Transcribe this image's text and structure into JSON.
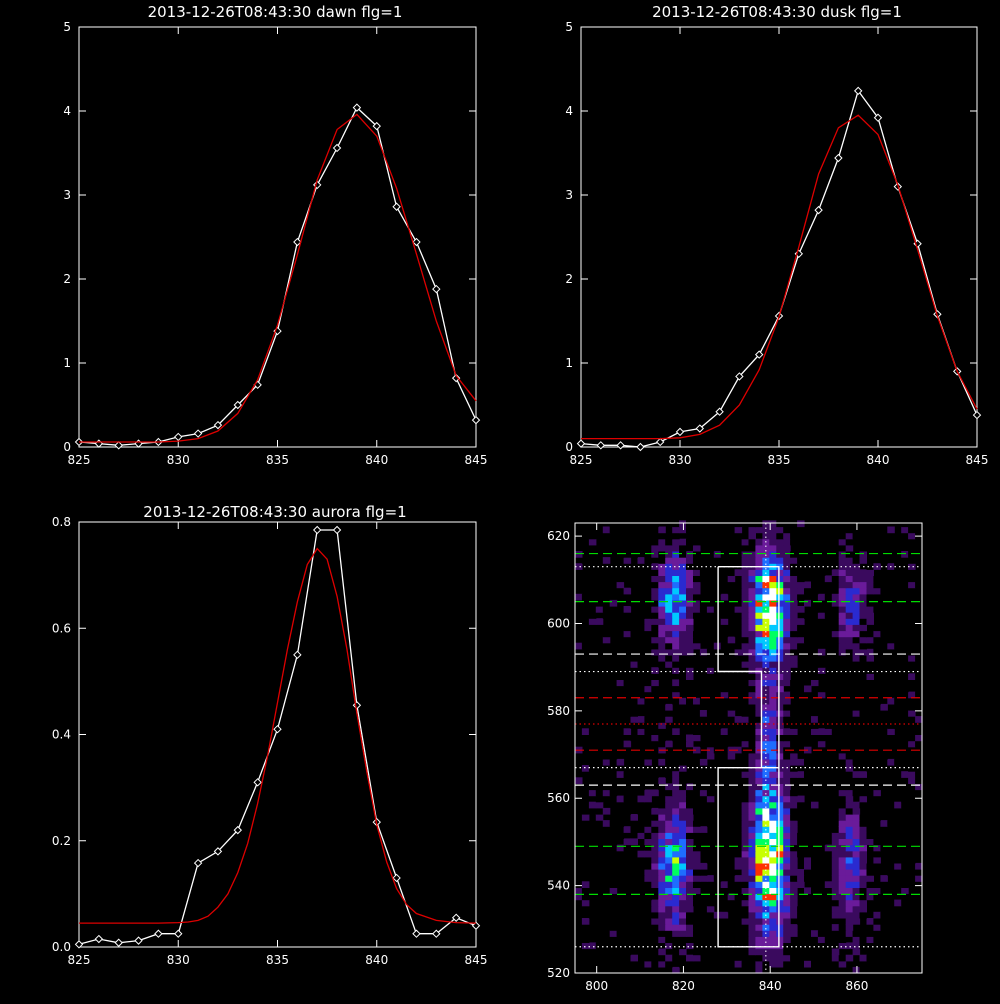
{
  "colors": {
    "background": "#000000",
    "axes": "#ffffff",
    "measured": "#ffffff",
    "fit": "#dd0000",
    "green_line": "#00dd00",
    "red_line": "#dd0000",
    "white_line": "#ffffff"
  },
  "chart_data": [
    {
      "type": "line",
      "title": "2013-12-26T08:43:30 dawn flg=1",
      "xlim": [
        825,
        845
      ],
      "ylim": [
        0,
        5
      ],
      "xticks": [
        "825",
        "830",
        "835",
        "840",
        "845"
      ],
      "yticks": [
        "0",
        "1",
        "2",
        "3",
        "4",
        "5"
      ],
      "series": [
        {
          "kind": "measured",
          "marker": "diamond",
          "x": [
            825,
            826,
            827,
            828,
            829,
            830,
            831,
            832,
            833,
            834,
            835,
            836,
            837,
            838,
            839,
            840,
            841,
            842,
            843,
            844,
            845
          ],
          "y": [
            0.06,
            0.04,
            0.02,
            0.04,
            0.06,
            0.12,
            0.16,
            0.26,
            0.5,
            0.74,
            1.38,
            2.44,
            3.12,
            3.56,
            4.04,
            3.82,
            2.86,
            2.44,
            1.88,
            0.82,
            0.32
          ]
        },
        {
          "kind": "fit",
          "x": [
            825,
            826,
            827,
            828,
            829,
            830,
            831,
            832,
            833,
            834,
            835,
            836,
            837,
            838,
            839,
            840,
            841,
            842,
            843,
            844,
            845
          ],
          "y": [
            0.06,
            0.06,
            0.06,
            0.06,
            0.06,
            0.07,
            0.1,
            0.19,
            0.4,
            0.8,
            1.45,
            2.29,
            3.18,
            3.78,
            3.96,
            3.7,
            3.08,
            2.3,
            1.5,
            0.85,
            0.55
          ]
        }
      ]
    },
    {
      "type": "line",
      "title": "2013-12-26T08:43:30 dusk flg=1",
      "xlim": [
        825,
        845
      ],
      "ylim": [
        0,
        5
      ],
      "xticks": [
        "825",
        "830",
        "835",
        "840",
        "845"
      ],
      "yticks": [
        "0",
        "1",
        "2",
        "3",
        "4",
        "5"
      ],
      "series": [
        {
          "kind": "measured",
          "marker": "diamond",
          "x": [
            825,
            826,
            827,
            828,
            829,
            830,
            831,
            832,
            833,
            834,
            835,
            836,
            837,
            838,
            839,
            840,
            841,
            842,
            843,
            844,
            845
          ],
          "y": [
            0.04,
            0.02,
            0.02,
            0.0,
            0.06,
            0.18,
            0.22,
            0.42,
            0.84,
            1.1,
            1.56,
            2.3,
            2.82,
            3.44,
            4.24,
            3.92,
            3.1,
            2.42,
            1.58,
            0.9,
            0.38
          ]
        },
        {
          "kind": "fit",
          "x": [
            825,
            826,
            827,
            828,
            829,
            830,
            831,
            832,
            833,
            834,
            835,
            836,
            837,
            838,
            839,
            840,
            841,
            842,
            843,
            844,
            845
          ],
          "y": [
            0.1,
            0.1,
            0.1,
            0.1,
            0.1,
            0.11,
            0.15,
            0.26,
            0.5,
            0.92,
            1.55,
            2.38,
            3.25,
            3.8,
            3.95,
            3.72,
            3.12,
            2.35,
            1.56,
            0.9,
            0.45
          ]
        }
      ]
    },
    {
      "type": "line",
      "title": "2013-12-26T08:43:30 aurora flg=1",
      "xlim": [
        825,
        845
      ],
      "ylim": [
        0,
        0.8
      ],
      "xticks": [
        "825",
        "830",
        "835",
        "840",
        "845"
      ],
      "yticks": [
        "0.0",
        "0.2",
        "0.4",
        "0.6",
        "0.8"
      ],
      "series": [
        {
          "kind": "measured",
          "marker": "diamond",
          "x": [
            825,
            826,
            827,
            828,
            829,
            830,
            831,
            832,
            833,
            834,
            835,
            836,
            837,
            838,
            839,
            840,
            841,
            842,
            843,
            844,
            845
          ],
          "y": [
            0.005,
            0.015,
            0.008,
            0.012,
            0.025,
            0.025,
            0.158,
            0.18,
            0.22,
            0.31,
            0.41,
            0.55,
            0.785,
            0.785,
            0.455,
            0.235,
            0.13,
            0.025,
            0.025,
            0.055,
            0.04
          ]
        },
        {
          "kind": "fit",
          "x": [
            825,
            826,
            827,
            828,
            829,
            830,
            830.5,
            831,
            831.5,
            832,
            832.5,
            833,
            833.5,
            834,
            834.5,
            835,
            835.5,
            836,
            836.5,
            837,
            837.5,
            838,
            838.5,
            839,
            839.5,
            840,
            840.5,
            841,
            841.5,
            842,
            843,
            844,
            845
          ],
          "y": [
            0.045,
            0.045,
            0.045,
            0.045,
            0.045,
            0.046,
            0.047,
            0.05,
            0.058,
            0.075,
            0.1,
            0.14,
            0.195,
            0.27,
            0.36,
            0.46,
            0.56,
            0.65,
            0.72,
            0.75,
            0.73,
            0.66,
            0.56,
            0.44,
            0.33,
            0.23,
            0.16,
            0.11,
            0.08,
            0.063,
            0.05,
            0.046,
            0.045
          ]
        }
      ]
    },
    {
      "type": "heatmap",
      "xlim": [
        795,
        875
      ],
      "ylim": [
        520,
        623
      ],
      "xticks": [
        "800",
        "820",
        "840",
        "860"
      ],
      "yticks": [
        "520",
        "540",
        "560",
        "580",
        "600",
        "620"
      ],
      "colormap": [
        "#000000",
        "#3a0a5e",
        "#6a1b9a",
        "#2a2ad0",
        "#1e6dff",
        "#00c8ff",
        "#00ff60",
        "#c8ff00",
        "#ff3000",
        "#ffffff"
      ],
      "blobs": [
        {
          "x": 817,
          "y": 605,
          "sx": 2.4,
          "sy": 6.5,
          "amp": 0.55
        },
        {
          "x": 817,
          "y": 544,
          "sx": 2.4,
          "sy": 9,
          "amp": 0.55
        },
        {
          "x": 839,
          "y": 603,
          "sx": 2.6,
          "sy": 8,
          "amp": 1.0
        },
        {
          "x": 839,
          "y": 546,
          "sx": 2.6,
          "sy": 11,
          "amp": 1.0
        },
        {
          "x": 839,
          "y": 575,
          "sx": 1.8,
          "sy": 9,
          "amp": 0.3
        },
        {
          "x": 858,
          "y": 604,
          "sx": 2.2,
          "sy": 6,
          "amp": 0.32
        },
        {
          "x": 858,
          "y": 545,
          "sx": 2.2,
          "sy": 9,
          "amp": 0.3
        }
      ],
      "hlines": [
        {
          "y": 616,
          "color": "#00dd00",
          "style": "dashed"
        },
        {
          "y": 605,
          "color": "#00dd00",
          "style": "dashed"
        },
        {
          "y": 549,
          "color": "#00dd00",
          "style": "dashed"
        },
        {
          "y": 538,
          "color": "#00dd00",
          "style": "dashed"
        },
        {
          "y": 583,
          "color": "#dd0000",
          "style": "dashed"
        },
        {
          "y": 571,
          "color": "#dd0000",
          "style": "dashed"
        },
        {
          "y": 577,
          "color": "#dd0000",
          "style": "dotted"
        },
        {
          "y": 593,
          "color": "#ffffff",
          "style": "dashed"
        },
        {
          "y": 563,
          "color": "#ffffff",
          "style": "dashed"
        },
        {
          "y": 613,
          "color": "#ffffff",
          "style": "dotted"
        },
        {
          "y": 589,
          "color": "#ffffff",
          "style": "dotted"
        },
        {
          "y": 567,
          "color": "#ffffff",
          "style": "dotted"
        },
        {
          "y": 526,
          "color": "#ffffff",
          "style": "dotted"
        }
      ],
      "vline": {
        "x": 839,
        "color": "#ffffff",
        "style": "dotted"
      },
      "outline": [
        [
          828,
          613
        ],
        [
          842,
          613
        ],
        [
          842,
          567
        ],
        [
          828,
          567
        ],
        [
          828,
          526
        ],
        [
          842,
          526
        ],
        [
          842,
          567
        ],
        [
          838,
          567
        ],
        [
          838,
          589
        ],
        [
          828,
          589
        ],
        [
          828,
          613
        ]
      ]
    }
  ]
}
